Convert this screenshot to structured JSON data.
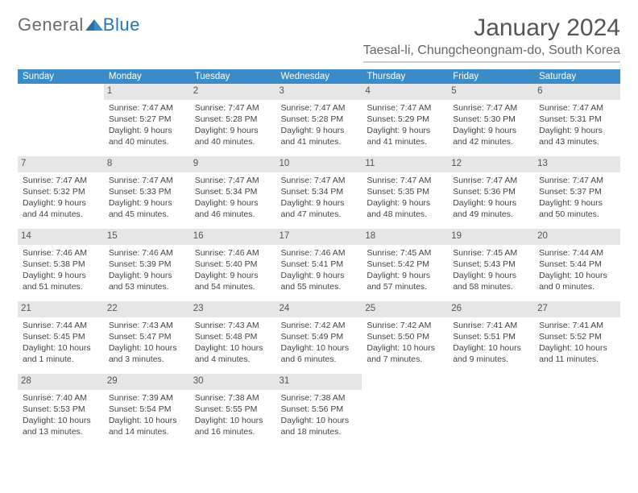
{
  "logo": {
    "text1": "General",
    "text2": "Blue"
  },
  "title": "January 2024",
  "location": "Taesal-li, Chungcheongnam-do, South Korea",
  "colors": {
    "header_bg": "#3b8bc8",
    "header_fg": "#ffffff",
    "daynum_bg": "#e6e6e6",
    "text": "#444444",
    "logo_blue": "#2176bd"
  },
  "fonts": {
    "title_size": 30,
    "location_size": 16,
    "header_size": 11.5,
    "body_size": 10.5
  },
  "daysOfWeek": [
    "Sunday",
    "Monday",
    "Tuesday",
    "Wednesday",
    "Thursday",
    "Friday",
    "Saturday"
  ],
  "weeks": [
    [
      {
        "num": "",
        "sunrise": "",
        "sunset": "",
        "daylight": ""
      },
      {
        "num": "1",
        "sunrise": "Sunrise: 7:47 AM",
        "sunset": "Sunset: 5:27 PM",
        "daylight": "Daylight: 9 hours and 40 minutes."
      },
      {
        "num": "2",
        "sunrise": "Sunrise: 7:47 AM",
        "sunset": "Sunset: 5:28 PM",
        "daylight": "Daylight: 9 hours and 40 minutes."
      },
      {
        "num": "3",
        "sunrise": "Sunrise: 7:47 AM",
        "sunset": "Sunset: 5:28 PM",
        "daylight": "Daylight: 9 hours and 41 minutes."
      },
      {
        "num": "4",
        "sunrise": "Sunrise: 7:47 AM",
        "sunset": "Sunset: 5:29 PM",
        "daylight": "Daylight: 9 hours and 41 minutes."
      },
      {
        "num": "5",
        "sunrise": "Sunrise: 7:47 AM",
        "sunset": "Sunset: 5:30 PM",
        "daylight": "Daylight: 9 hours and 42 minutes."
      },
      {
        "num": "6",
        "sunrise": "Sunrise: 7:47 AM",
        "sunset": "Sunset: 5:31 PM",
        "daylight": "Daylight: 9 hours and 43 minutes."
      }
    ],
    [
      {
        "num": "7",
        "sunrise": "Sunrise: 7:47 AM",
        "sunset": "Sunset: 5:32 PM",
        "daylight": "Daylight: 9 hours and 44 minutes."
      },
      {
        "num": "8",
        "sunrise": "Sunrise: 7:47 AM",
        "sunset": "Sunset: 5:33 PM",
        "daylight": "Daylight: 9 hours and 45 minutes."
      },
      {
        "num": "9",
        "sunrise": "Sunrise: 7:47 AM",
        "sunset": "Sunset: 5:34 PM",
        "daylight": "Daylight: 9 hours and 46 minutes."
      },
      {
        "num": "10",
        "sunrise": "Sunrise: 7:47 AM",
        "sunset": "Sunset: 5:34 PM",
        "daylight": "Daylight: 9 hours and 47 minutes."
      },
      {
        "num": "11",
        "sunrise": "Sunrise: 7:47 AM",
        "sunset": "Sunset: 5:35 PM",
        "daylight": "Daylight: 9 hours and 48 minutes."
      },
      {
        "num": "12",
        "sunrise": "Sunrise: 7:47 AM",
        "sunset": "Sunset: 5:36 PM",
        "daylight": "Daylight: 9 hours and 49 minutes."
      },
      {
        "num": "13",
        "sunrise": "Sunrise: 7:47 AM",
        "sunset": "Sunset: 5:37 PM",
        "daylight": "Daylight: 9 hours and 50 minutes."
      }
    ],
    [
      {
        "num": "14",
        "sunrise": "Sunrise: 7:46 AM",
        "sunset": "Sunset: 5:38 PM",
        "daylight": "Daylight: 9 hours and 51 minutes."
      },
      {
        "num": "15",
        "sunrise": "Sunrise: 7:46 AM",
        "sunset": "Sunset: 5:39 PM",
        "daylight": "Daylight: 9 hours and 53 minutes."
      },
      {
        "num": "16",
        "sunrise": "Sunrise: 7:46 AM",
        "sunset": "Sunset: 5:40 PM",
        "daylight": "Daylight: 9 hours and 54 minutes."
      },
      {
        "num": "17",
        "sunrise": "Sunrise: 7:46 AM",
        "sunset": "Sunset: 5:41 PM",
        "daylight": "Daylight: 9 hours and 55 minutes."
      },
      {
        "num": "18",
        "sunrise": "Sunrise: 7:45 AM",
        "sunset": "Sunset: 5:42 PM",
        "daylight": "Daylight: 9 hours and 57 minutes."
      },
      {
        "num": "19",
        "sunrise": "Sunrise: 7:45 AM",
        "sunset": "Sunset: 5:43 PM",
        "daylight": "Daylight: 9 hours and 58 minutes."
      },
      {
        "num": "20",
        "sunrise": "Sunrise: 7:44 AM",
        "sunset": "Sunset: 5:44 PM",
        "daylight": "Daylight: 10 hours and 0 minutes."
      }
    ],
    [
      {
        "num": "21",
        "sunrise": "Sunrise: 7:44 AM",
        "sunset": "Sunset: 5:45 PM",
        "daylight": "Daylight: 10 hours and 1 minute."
      },
      {
        "num": "22",
        "sunrise": "Sunrise: 7:43 AM",
        "sunset": "Sunset: 5:47 PM",
        "daylight": "Daylight: 10 hours and 3 minutes."
      },
      {
        "num": "23",
        "sunrise": "Sunrise: 7:43 AM",
        "sunset": "Sunset: 5:48 PM",
        "daylight": "Daylight: 10 hours and 4 minutes."
      },
      {
        "num": "24",
        "sunrise": "Sunrise: 7:42 AM",
        "sunset": "Sunset: 5:49 PM",
        "daylight": "Daylight: 10 hours and 6 minutes."
      },
      {
        "num": "25",
        "sunrise": "Sunrise: 7:42 AM",
        "sunset": "Sunset: 5:50 PM",
        "daylight": "Daylight: 10 hours and 7 minutes."
      },
      {
        "num": "26",
        "sunrise": "Sunrise: 7:41 AM",
        "sunset": "Sunset: 5:51 PM",
        "daylight": "Daylight: 10 hours and 9 minutes."
      },
      {
        "num": "27",
        "sunrise": "Sunrise: 7:41 AM",
        "sunset": "Sunset: 5:52 PM",
        "daylight": "Daylight: 10 hours and 11 minutes."
      }
    ],
    [
      {
        "num": "28",
        "sunrise": "Sunrise: 7:40 AM",
        "sunset": "Sunset: 5:53 PM",
        "daylight": "Daylight: 10 hours and 13 minutes."
      },
      {
        "num": "29",
        "sunrise": "Sunrise: 7:39 AM",
        "sunset": "Sunset: 5:54 PM",
        "daylight": "Daylight: 10 hours and 14 minutes."
      },
      {
        "num": "30",
        "sunrise": "Sunrise: 7:38 AM",
        "sunset": "Sunset: 5:55 PM",
        "daylight": "Daylight: 10 hours and 16 minutes."
      },
      {
        "num": "31",
        "sunrise": "Sunrise: 7:38 AM",
        "sunset": "Sunset: 5:56 PM",
        "daylight": "Daylight: 10 hours and 18 minutes."
      },
      {
        "num": "",
        "sunrise": "",
        "sunset": "",
        "daylight": ""
      },
      {
        "num": "",
        "sunrise": "",
        "sunset": "",
        "daylight": ""
      },
      {
        "num": "",
        "sunrise": "",
        "sunset": "",
        "daylight": ""
      }
    ]
  ]
}
